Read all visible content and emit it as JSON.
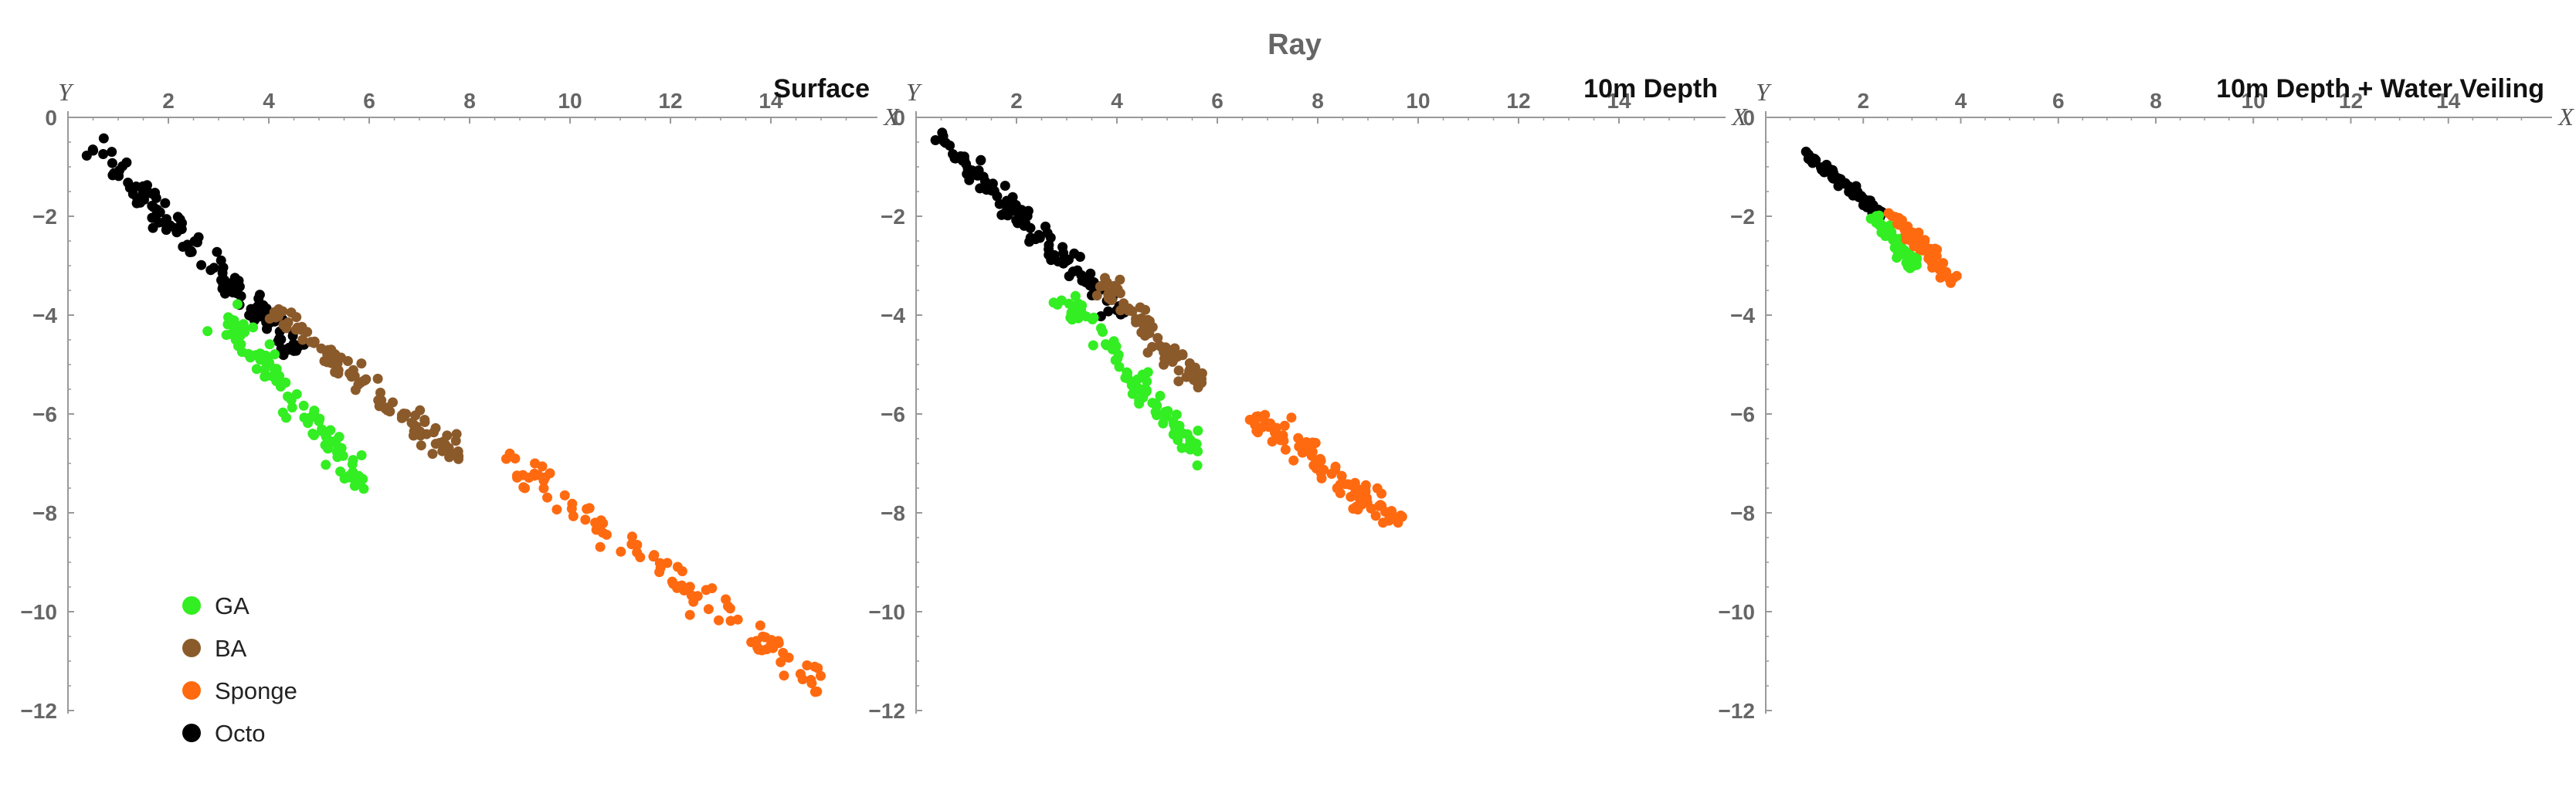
{
  "title": "Ray",
  "colors": {
    "GA": "#33ee22",
    "BA": "#8b5a2b",
    "Sponge": "#ff6a10",
    "Octo": "#000000",
    "axis": "#999999",
    "text": "#666666"
  },
  "legend": {
    "placement": "bottom-left of first panel",
    "items": [
      {
        "label": "GA",
        "color": "#33ee22"
      },
      {
        "label": "BA",
        "color": "#8b5a2b"
      },
      {
        "label": "Sponge",
        "color": "#ff6a10"
      },
      {
        "label": "Octo",
        "color": "#000000"
      }
    ]
  },
  "chart_data": [
    {
      "type": "scatter",
      "title": "Surface",
      "xlabel": "X",
      "ylabel": "Y",
      "xlim": [
        0,
        16
      ],
      "ylim": [
        -12,
        0
      ],
      "xticks": [
        2,
        4,
        6,
        8,
        10,
        12,
        14
      ],
      "yticks": [
        0,
        -2,
        -4,
        -6,
        -8,
        -10,
        -12
      ],
      "grid": false,
      "series": [
        {
          "name": "Octo",
          "color": "#000000",
          "trend": {
            "from": [
              0.5,
              -0.6
            ],
            "to": [
              4.6,
              -4.7
            ]
          },
          "count": 120,
          "spread": 0.13,
          "extra": [
            [
              4.4,
              -4.7
            ],
            [
              4.7,
              -4.6
            ],
            [
              4.2,
              -4.1
            ]
          ]
        },
        {
          "name": "BA",
          "color": "#8b5a2b",
          "trend": {
            "from": [
              4.1,
              -3.9
            ],
            "to": [
              7.8,
              -6.9
            ]
          },
          "count": 95,
          "spread": 0.12,
          "extra": [
            [
              7.6,
              -6.8
            ]
          ]
        },
        {
          "name": "GA",
          "color": "#33ee22",
          "trend": {
            "from": [
              3.1,
              -4.0
            ],
            "to": [
              6.0,
              -7.6
            ]
          },
          "count": 95,
          "spread": 0.13,
          "extra": []
        },
        {
          "name": "Sponge",
          "color": "#ff6a10",
          "trend": {
            "from": [
              8.7,
              -6.9
            ],
            "to": [
              15.2,
              -11.6
            ]
          },
          "count": 95,
          "spread": 0.14,
          "extra": [
            [
              9.1,
              -7.5
            ],
            [
              9.6,
              -7.2
            ],
            [
              9.3,
              -7.0
            ]
          ]
        }
      ]
    },
    {
      "type": "scatter",
      "title": "10m Depth",
      "xlabel": "X",
      "ylabel": "Y",
      "xlim": [
        0,
        16
      ],
      "ylim": [
        -12,
        0
      ],
      "xticks": [
        2,
        4,
        6,
        8,
        10,
        12,
        14
      ],
      "yticks": [
        0,
        -2,
        -4,
        -6,
        -8,
        -10,
        -12
      ],
      "grid": false,
      "series": [
        {
          "name": "Octo",
          "color": "#000000",
          "trend": {
            "from": [
              0.4,
              -0.4
            ],
            "to": [
              4.1,
              -4.0
            ]
          },
          "count": 105,
          "spread": 0.12,
          "extra": [
            [
              3.5,
              -3.6
            ],
            [
              4.0,
              -3.9
            ],
            [
              3.0,
              -2.9
            ]
          ]
        },
        {
          "name": "BA",
          "color": "#8b5a2b",
          "trend": {
            "from": [
              3.6,
              -3.3
            ],
            "to": [
              5.7,
              -5.4
            ]
          },
          "count": 80,
          "spread": 0.11,
          "extra": []
        },
        {
          "name": "GA",
          "color": "#33ee22",
          "trend": {
            "from": [
              2.9,
              -3.6
            ],
            "to": [
              5.8,
              -7.0
            ]
          },
          "count": 85,
          "spread": 0.12,
          "extra": []
        },
        {
          "name": "Sponge",
          "color": "#ff6a10",
          "trend": {
            "from": [
              6.7,
              -6.0
            ],
            "to": [
              9.6,
              -8.2
            ]
          },
          "count": 95,
          "spread": 0.13,
          "extra": [
            [
              9.3,
              -8.2
            ],
            [
              9.6,
              -8.2
            ]
          ]
        }
      ]
    },
    {
      "type": "scatter",
      "title": "10m Depth + Water Veiling",
      "xlabel": "X",
      "ylabel": "Y",
      "xlim": [
        0,
        16
      ],
      "ylim": [
        -12,
        0
      ],
      "xticks": [
        2,
        4,
        6,
        8,
        10,
        12,
        14
      ],
      "yticks": [
        0,
        -2,
        -4,
        -6,
        -8,
        -10,
        -12
      ],
      "grid": false,
      "series": [
        {
          "name": "Octo",
          "color": "#000000",
          "trend": {
            "from": [
              0.8,
              -0.7
            ],
            "to": [
              2.4,
              -2.0
            ]
          },
          "count": 90,
          "spread": 0.05,
          "extra": []
        },
        {
          "name": "GA",
          "color": "#33ee22",
          "trend": {
            "from": [
              2.2,
              -2.0
            ],
            "to": [
              3.1,
              -3.0
            ]
          },
          "count": 60,
          "spread": 0.07,
          "extra": []
        },
        {
          "name": "Sponge",
          "color": "#ff6a10",
          "trend": {
            "from": [
              2.5,
              -1.9
            ],
            "to": [
              3.9,
              -3.3
            ]
          },
          "count": 65,
          "spread": 0.07,
          "extra": []
        }
      ]
    }
  ]
}
